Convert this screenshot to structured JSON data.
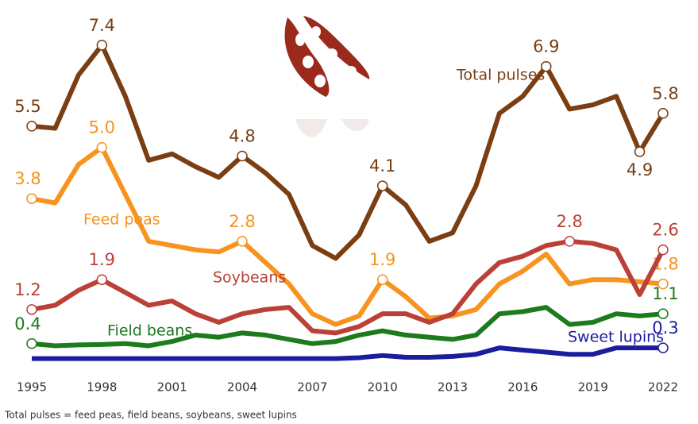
{
  "chart_data": {
    "type": "line",
    "x": [
      1995,
      1996,
      1997,
      1998,
      1999,
      2000,
      2001,
      2002,
      2003,
      2004,
      2005,
      2006,
      2007,
      2008,
      2009,
      2010,
      2011,
      2012,
      2013,
      2014,
      2015,
      2016,
      2017,
      2018,
      2019,
      2020,
      2021,
      2022
    ],
    "xlim": [
      1995,
      2022
    ],
    "xticks": [
      1995,
      1998,
      2001,
      2004,
      2007,
      2010,
      2013,
      2016,
      2019,
      2022
    ],
    "series": [
      {
        "name": "Total pulses",
        "color": "#7a3e12",
        "values": [
          5.5,
          5.45,
          6.7,
          7.4,
          6.2,
          4.7,
          4.85,
          4.55,
          4.3,
          4.8,
          4.4,
          3.9,
          2.7,
          2.4,
          2.95,
          4.1,
          3.65,
          2.8,
          3.0,
          4.1,
          5.8,
          6.2,
          6.9,
          5.9,
          6.0,
          6.2,
          4.9,
          5.8
        ],
        "value_labels": [
          "5.5",
          null,
          null,
          "7.4",
          null,
          null,
          null,
          null,
          null,
          "4.8",
          null,
          null,
          null,
          null,
          null,
          "4.1",
          null,
          null,
          null,
          null,
          null,
          null,
          "6.9",
          null,
          null,
          null,
          "4.9",
          "5.8"
        ]
      },
      {
        "name": "Feed peas",
        "color": "#f7931e",
        "values": [
          3.8,
          3.7,
          4.6,
          5.0,
          3.9,
          2.8,
          2.7,
          2.6,
          2.55,
          2.8,
          2.3,
          1.8,
          1.1,
          0.85,
          1.05,
          1.9,
          1.5,
          1.0,
          1.05,
          1.2,
          1.8,
          2.1,
          2.5,
          1.8,
          1.9,
          1.9,
          1.85,
          1.8
        ],
        "value_labels": [
          "3.8",
          null,
          null,
          "5.0",
          null,
          null,
          null,
          null,
          null,
          "2.8",
          null,
          null,
          null,
          null,
          null,
          "1.9",
          null,
          null,
          null,
          null,
          null,
          null,
          null,
          null,
          null,
          null,
          null,
          "1.8"
        ]
      },
      {
        "name": "Soybeans",
        "color": "#bb4037",
        "values": [
          1.2,
          1.3,
          1.65,
          1.9,
          1.6,
          1.3,
          1.4,
          1.1,
          0.9,
          1.1,
          1.2,
          1.25,
          0.7,
          0.65,
          0.8,
          1.1,
          1.1,
          0.9,
          1.1,
          1.8,
          2.3,
          2.45,
          2.7,
          2.8,
          2.75,
          2.6,
          1.55,
          2.6
        ],
        "value_labels": [
          "1.2",
          null,
          null,
          "1.9",
          null,
          null,
          null,
          null,
          null,
          null,
          null,
          null,
          null,
          null,
          null,
          null,
          null,
          null,
          null,
          null,
          null,
          null,
          null,
          "2.8",
          null,
          null,
          null,
          "2.6"
        ]
      },
      {
        "name": "Field beans",
        "color": "#1d7a1d",
        "values": [
          0.4,
          0.35,
          0.37,
          0.38,
          0.4,
          0.35,
          0.45,
          0.6,
          0.55,
          0.65,
          0.6,
          0.5,
          0.4,
          0.45,
          0.6,
          0.7,
          0.6,
          0.55,
          0.5,
          0.6,
          1.1,
          1.15,
          1.25,
          0.85,
          0.9,
          1.1,
          1.05,
          1.1
        ],
        "value_labels": [
          "0.4",
          null,
          null,
          null,
          null,
          null,
          null,
          null,
          null,
          null,
          null,
          null,
          null,
          null,
          null,
          null,
          null,
          null,
          null,
          null,
          null,
          null,
          null,
          null,
          null,
          null,
          null,
          "1.1"
        ]
      },
      {
        "name": "Sweet lupins",
        "color": "#1c1c9e",
        "values": [
          0.05,
          0.05,
          0.05,
          0.05,
          0.05,
          0.05,
          0.05,
          0.05,
          0.05,
          0.05,
          0.05,
          0.05,
          0.05,
          0.05,
          0.07,
          0.12,
          0.08,
          0.08,
          0.1,
          0.15,
          0.3,
          0.25,
          0.2,
          0.15,
          0.15,
          0.3,
          0.3,
          0.3
        ],
        "value_labels": [
          null,
          null,
          null,
          null,
          null,
          null,
          null,
          null,
          null,
          null,
          null,
          null,
          null,
          null,
          null,
          null,
          null,
          null,
          null,
          null,
          null,
          null,
          null,
          null,
          null,
          null,
          null,
          "0.3"
        ]
      }
    ],
    "ylim": [
      -0.2,
      7.9
    ],
    "footnote": "Total pulses = feed peas, field beans, soybeans, sweet lupins"
  }
}
